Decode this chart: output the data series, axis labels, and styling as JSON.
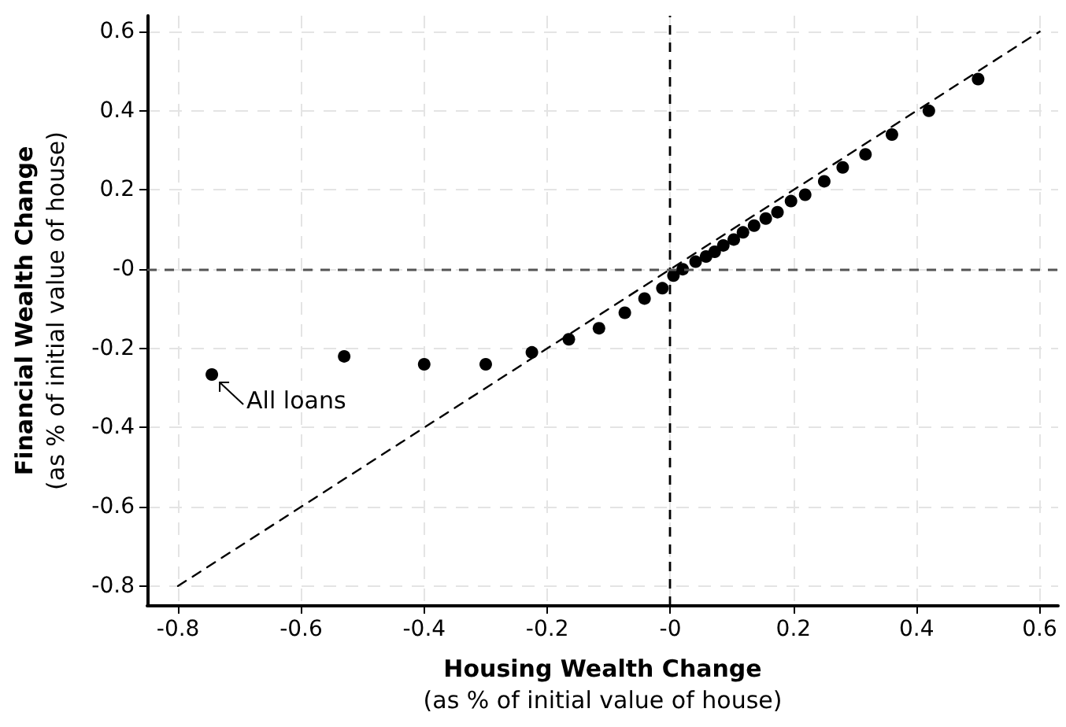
{
  "chart_data": {
    "type": "scatter",
    "xlabel": "Housing Wealth Change\n(as % of initial value of house)",
    "ylabel": "Financial Wealth Change\n(as % of initial value of house)",
    "series": [
      {
        "color": "#000000",
        "x": [
          -0.745,
          -0.53,
          -0.4,
          -0.3,
          -0.225,
          -0.165,
          -0.116,
          -0.074,
          -0.042,
          -0.013,
          0.005,
          0.02,
          0.041,
          0.058,
          0.072,
          0.086,
          0.103,
          0.118,
          0.136,
          0.155,
          0.174,
          0.196,
          0.219,
          0.25,
          0.28,
          0.317,
          0.36,
          0.42,
          0.5
        ],
        "values": [
          -0.266,
          -0.22,
          -0.24,
          -0.24,
          -0.21,
          -0.177,
          -0.149,
          -0.11,
          -0.074,
          -0.048,
          -0.016,
          0.0,
          0.019,
          0.032,
          0.044,
          0.06,
          0.075,
          0.093,
          0.11,
          0.128,
          0.144,
          0.172,
          0.188,
          0.222,
          0.257,
          0.29,
          0.34,
          0.4,
          0.48
        ]
      },
      {
        "type": "line",
        "color": "#000000",
        "line_style": "dashed",
        "marker": "none",
        "x": [
          -0.8,
          0.6
        ],
        "values": [
          -0.8,
          0.6
        ]
      }
    ],
    "marker": "circle",
    "xlim": [
      -0.85,
      0.63
    ],
    "ylim": [
      -0.85,
      0.64
    ],
    "xticks": [
      -0.8,
      -0.6,
      -0.4,
      -0.2,
      {
        "value": 0,
        "label": "-0"
      },
      0.2,
      0.4,
      0.6
    ],
    "yticks": [
      -0.8,
      -0.6,
      -0.4,
      -0.2,
      {
        "value": 0,
        "label": "-0"
      },
      0.2,
      0.4,
      0.6
    ],
    "grid": true,
    "ref_lines": [
      {
        "axis": "x",
        "value": 0,
        "color": "#000000",
        "line_style": "dashed"
      },
      {
        "axis": "y",
        "value": 0,
        "color": "#555555",
        "line_style": "dashed"
      }
    ],
    "annotations": [
      {
        "text": "All loans",
        "x": -0.745,
        "y": -0.266
      }
    ]
  }
}
